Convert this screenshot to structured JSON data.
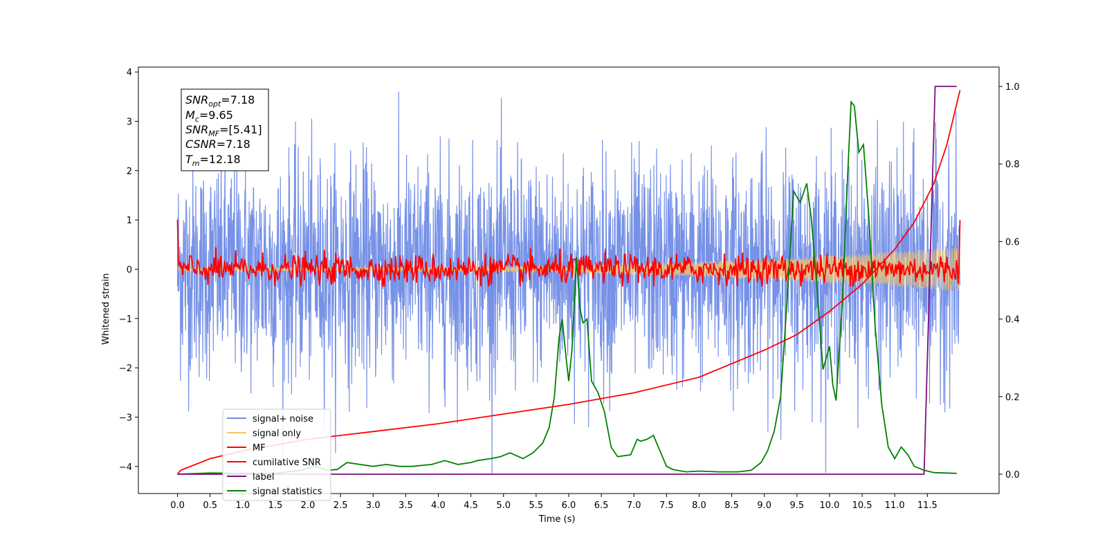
{
  "chart_data": {
    "type": "line",
    "xlabel": "Time (s)",
    "ylabel": "Whitened strain",
    "xlim": [
      -0.6,
      12.6
    ],
    "ylim": [
      -4.55,
      4.1
    ],
    "y2lim": [
      -0.05,
      1.05
    ],
    "x_ticks": [
      0.0,
      0.5,
      1.0,
      1.5,
      2.0,
      2.5,
      3.0,
      3.5,
      4.0,
      4.5,
      5.0,
      5.5,
      6.0,
      6.5,
      7.0,
      7.5,
      8.0,
      8.5,
      9.0,
      9.5,
      10.0,
      10.5,
      11.0,
      11.5
    ],
    "x_tick_labels": [
      "0.0",
      "0.5",
      "1.0",
      "1.5",
      "2.0",
      "2.5",
      "3.0",
      "3.5",
      "4.0",
      "4.5",
      "5.0",
      "5.5",
      "6.0",
      "6.5",
      "7.0",
      "7.5",
      "8.0",
      "8.5",
      "9.0",
      "9.5",
      "10.0",
      "10.5",
      "11.0",
      "11.5"
    ],
    "y_ticks": [
      -4,
      -3,
      -2,
      -1,
      0,
      1,
      2,
      3,
      4
    ],
    "y_tick_labels": [
      "−4",
      "−3",
      "−2",
      "−1",
      "0",
      "1",
      "2",
      "3",
      "4"
    ],
    "y2_ticks": [
      0.0,
      0.2,
      0.4,
      0.6,
      0.8,
      1.0
    ],
    "y2_tick_labels": [
      "0.0",
      "0.2",
      "0.4",
      "0.6",
      "0.8",
      "1.0"
    ],
    "grid": false,
    "legend_position": "lower-left",
    "annotation_lines": [
      "SNR_opt=7.18",
      "M_c=9.65",
      "SNR_MF=[5.41]",
      "CSNR=7.18",
      "T_m=12.18"
    ],
    "annotation": {
      "snr_opt": {
        "sym": "SNR",
        "sub": "opt",
        "val": "=7.18"
      },
      "mc": {
        "sym": "M",
        "sub": "c",
        "val": "=9.65"
      },
      "snr_mf": {
        "sym": "SNR",
        "sub": "MF",
        "val": "=[5.41]"
      },
      "csnr": {
        "sym": "CSNR",
        "sub": "",
        "val": "=7.18"
      },
      "tm": {
        "sym": "T",
        "sub": "m",
        "val": "=12.18"
      }
    },
    "series": [
      {
        "name": "signal+ noise",
        "color": "#6f8be6",
        "axis": "left",
        "kind": "noise",
        "t_start": 0.0,
        "t_end": 12.0,
        "std": 1.1,
        "min": -4.15,
        "max": 3.7
      },
      {
        "name": "signal only",
        "color": "#f5c46b",
        "axis": "left",
        "kind": "chirp",
        "t_start": 0.0,
        "t_end": 12.0,
        "amp_start": 0.03,
        "amp_end": 0.45
      },
      {
        "name": "MF",
        "color": "#ff0000",
        "axis": "left",
        "kind": "noise",
        "t_start": 0.0,
        "t_end": 12.0,
        "std": 0.15,
        "min": -0.35,
        "max": 1.0
      },
      {
        "name": "cumilative SNR",
        "color": "#ff0000",
        "axis": "right",
        "x": [
          0.0,
          0.05,
          0.5,
          1.0,
          2.0,
          3.0,
          4.0,
          5.0,
          6.0,
          7.0,
          8.0,
          9.0,
          9.5,
          10.0,
          10.5,
          11.0,
          11.3,
          11.6,
          11.8,
          12.0
        ],
        "y": [
          0.0,
          0.01,
          0.04,
          0.06,
          0.09,
          0.11,
          0.13,
          0.155,
          0.18,
          0.21,
          0.25,
          0.32,
          0.36,
          0.42,
          0.49,
          0.58,
          0.65,
          0.75,
          0.85,
          0.99
        ]
      },
      {
        "name": "label",
        "color": "#7b0e7b",
        "axis": "right",
        "x": [
          0.0,
          11.45,
          11.62,
          11.95
        ],
        "y": [
          0.0,
          0.0,
          1.0,
          1.0
        ]
      },
      {
        "name": "signal statistics",
        "color": "#008000",
        "axis": "right",
        "x": [
          0.0,
          0.5,
          1.0,
          1.5,
          1.9,
          2.1,
          2.3,
          2.45,
          2.6,
          2.8,
          3.0,
          3.2,
          3.4,
          3.6,
          3.9,
          4.1,
          4.3,
          4.5,
          4.6,
          4.8,
          4.95,
          5.1,
          5.3,
          5.45,
          5.6,
          5.7,
          5.78,
          5.85,
          5.9,
          5.96,
          6.0,
          6.05,
          6.12,
          6.17,
          6.22,
          6.28,
          6.35,
          6.45,
          6.55,
          6.65,
          6.75,
          6.95,
          7.05,
          7.1,
          7.2,
          7.3,
          7.35,
          7.4,
          7.5,
          7.6,
          7.8,
          8.0,
          8.3,
          8.6,
          8.8,
          8.95,
          9.05,
          9.15,
          9.25,
          9.35,
          9.45,
          9.55,
          9.65,
          9.72,
          9.8,
          9.9,
          9.95,
          10.0,
          10.05,
          10.1,
          10.2,
          10.28,
          10.33,
          10.38,
          10.45,
          10.52,
          10.6,
          10.7,
          10.8,
          10.9,
          11.0,
          11.1,
          11.2,
          11.3,
          11.45,
          11.6,
          11.8,
          11.95
        ],
        "y": [
          0.0,
          0.003,
          0.002,
          0.002,
          0.01,
          0.02,
          0.01,
          0.012,
          0.03,
          0.025,
          0.02,
          0.025,
          0.02,
          0.02,
          0.025,
          0.035,
          0.025,
          0.03,
          0.035,
          0.04,
          0.045,
          0.055,
          0.04,
          0.055,
          0.08,
          0.12,
          0.2,
          0.35,
          0.4,
          0.3,
          0.24,
          0.32,
          0.56,
          0.43,
          0.39,
          0.4,
          0.24,
          0.21,
          0.16,
          0.07,
          0.045,
          0.05,
          0.09,
          0.085,
          0.09,
          0.1,
          0.08,
          0.06,
          0.02,
          0.012,
          0.006,
          0.008,
          0.006,
          0.006,
          0.01,
          0.03,
          0.06,
          0.11,
          0.2,
          0.45,
          0.73,
          0.7,
          0.75,
          0.66,
          0.5,
          0.27,
          0.3,
          0.33,
          0.23,
          0.19,
          0.45,
          0.78,
          0.96,
          0.95,
          0.83,
          0.85,
          0.67,
          0.38,
          0.18,
          0.07,
          0.04,
          0.07,
          0.05,
          0.02,
          0.01,
          0.004,
          0.003,
          0.002
        ]
      }
    ]
  }
}
